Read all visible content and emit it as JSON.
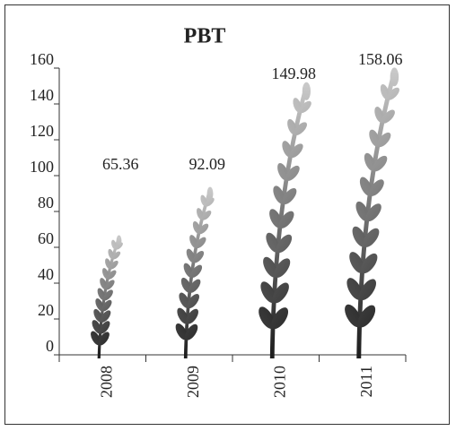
{
  "chart_data": {
    "type": "bar",
    "title": "PBT",
    "categories": [
      "2008",
      "2009",
      "2010",
      "2011"
    ],
    "values": [
      65.36,
      92.09,
      149.98,
      158.06
    ],
    "ylim": [
      0,
      160
    ],
    "yticks": [
      0,
      20,
      40,
      60,
      80,
      100,
      120,
      140,
      160
    ],
    "colors": [
      "#1e1e1e",
      "#c8c8c8"
    ]
  }
}
